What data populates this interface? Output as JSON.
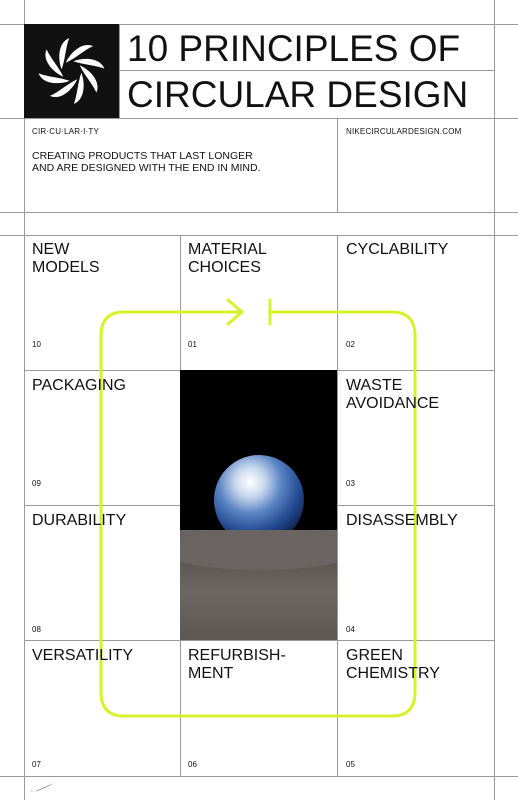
{
  "header": {
    "title_line1": "10 PRINCIPLES OF",
    "title_line2": "CIRCULAR DESIGN",
    "pronunciation": "CIR·CU·LAR·I·TY",
    "website": "NIKECIRCULARDESIGN.COM",
    "description": "CREATING PRODUCTS THAT LAST LONGER AND ARE DESIGNED WITH THE END IN MIND."
  },
  "colors": {
    "accent": "#d7f12a",
    "ink": "#111111",
    "grid": "#9a9a9a"
  },
  "grid": {
    "cells": [
      {
        "label": "NEW\nMODELS",
        "number": "10"
      },
      {
        "label": "MATERIAL\nCHOICES",
        "number": "01"
      },
      {
        "label": "CYCLABILITY",
        "number": "02"
      },
      {
        "label": "PACKAGING",
        "number": "09"
      },
      {
        "label": "WASTE\nAVOIDANCE",
        "number": "03"
      },
      {
        "label": "DURABILITY",
        "number": "08"
      },
      {
        "label": "DISASSEMBLY",
        "number": "04"
      },
      {
        "label": "VERSATILITY",
        "number": "07"
      },
      {
        "label": "REFURBISH-\nMENT",
        "number": "06"
      },
      {
        "label": "GREEN\nCHEMISTRY",
        "number": "05"
      }
    ]
  },
  "icons": {
    "logo": "nike-move-to-zero-icon",
    "footer": "nike-swoosh-icon",
    "image": "earthrise-photo"
  }
}
